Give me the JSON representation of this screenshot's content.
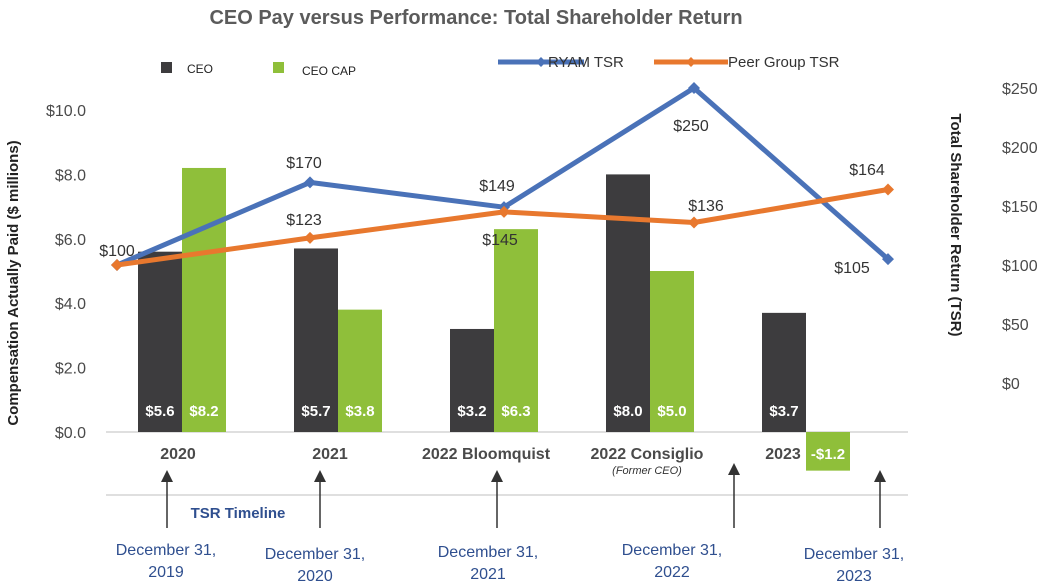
{
  "chart_data": {
    "type": "bar+line",
    "title": "CEO Pay versus Performance: Total Shareholder Return",
    "categories": [
      "2020",
      "2021",
      "2022 Bloomquist",
      "2022 Consiglio",
      "2023"
    ],
    "category_subtitles": [
      "",
      "",
      "",
      "(Former CEO)",
      ""
    ],
    "y_left": {
      "label": "Compensation Actually Paid ($ millions)",
      "ticks": [
        "$0.0",
        "$2.0",
        "$4.0",
        "$6.0",
        "$8.0",
        "$10.0"
      ],
      "tick_values": [
        0,
        2,
        4,
        6,
        8,
        10
      ],
      "range": [
        0,
        10
      ]
    },
    "y_right": {
      "label": "Total Shareholder Return (TSR)",
      "ticks": [
        "$0",
        "$50",
        "$100",
        "$150",
        "$200",
        "$250"
      ],
      "tick_values": [
        0,
        50,
        100,
        150,
        200,
        250
      ],
      "range": [
        0,
        250
      ]
    },
    "bar_series": [
      {
        "name": "CEO",
        "color": "#3d3c3e",
        "values": [
          5.6,
          5.7,
          3.2,
          8.0,
          3.7
        ],
        "labels": [
          "$5.6",
          "$5.7",
          "$3.2",
          "$8.0",
          "$3.7"
        ]
      },
      {
        "name": "CEO CAP",
        "color": "#8fbf3a",
        "values": [
          8.2,
          3.8,
          6.3,
          5.0,
          -1.2
        ],
        "labels": [
          "$8.2",
          "$3.8",
          "$6.3",
          "$5.0",
          "-$1.2"
        ]
      }
    ],
    "line_series": [
      {
        "name": "RYAM TSR",
        "color": "#4a72b8",
        "values": [
          100,
          170,
          149,
          250,
          105
        ],
        "labels": [
          "$100",
          "$170",
          "$149",
          "$250",
          "$105"
        ]
      },
      {
        "name": "Peer Group TSR",
        "color": "#e8782e",
        "values": [
          100,
          123,
          145,
          136,
          164
        ],
        "labels": [
          "$100",
          "$123",
          "$145",
          "$136",
          "$164"
        ]
      }
    ],
    "timeline": {
      "title": "TSR Timeline",
      "dates": [
        "December 31, 2019",
        "December 31, 2020",
        "December 31, 2021",
        "December 31, 2022",
        "December 31, 2023"
      ]
    }
  }
}
